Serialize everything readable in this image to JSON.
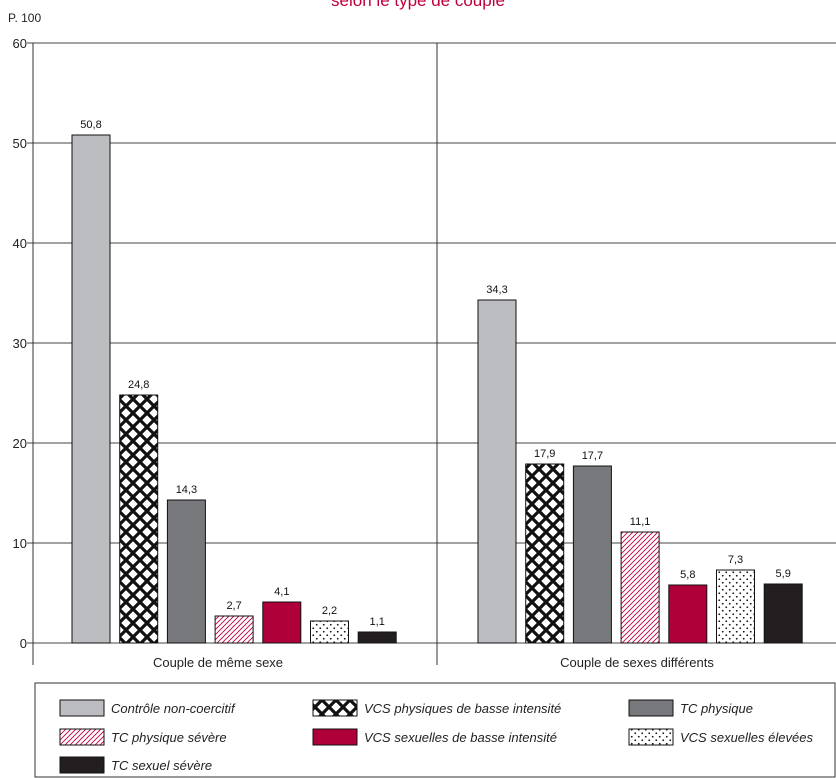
{
  "chart_data": {
    "type": "bar",
    "title": "selon le type de couple",
    "ylabel": "P. 100",
    "ylim": [
      0,
      60
    ],
    "yticks": [
      0,
      10,
      20,
      30,
      40,
      50,
      60
    ],
    "grid": true,
    "legend_position": "bottom",
    "categories": [
      "Couple de même sexe",
      "Couple de sexes différents"
    ],
    "series": [
      {
        "name": "Contrôle non-coercitif",
        "values": [
          50.8,
          34.3
        ],
        "labels": [
          "50,8",
          "34,3"
        ],
        "pattern": "solid",
        "color": "#bcbdc0"
      },
      {
        "name": "VCS physiques de basse intensité",
        "values": [
          24.8,
          17.9
        ],
        "labels": [
          "24,8",
          "17,9"
        ],
        "pattern": "crosshatch",
        "color": "#111111"
      },
      {
        "name": "TC physique",
        "values": [
          14.3,
          17.7
        ],
        "labels": [
          "14,3",
          "17,7"
        ],
        "pattern": "solid",
        "color": "#77787b"
      },
      {
        "name": "TC physique sévère",
        "values": [
          2.7,
          11.1
        ],
        "labels": [
          "2,7",
          "11,1"
        ],
        "pattern": "diagonal",
        "color": "#c0003c"
      },
      {
        "name": "VCS sexuelles de basse intensité",
        "values": [
          4.1,
          5.8
        ],
        "labels": [
          "4,1",
          "5,8"
        ],
        "pattern": "solid",
        "color": "#b0003a"
      },
      {
        "name": "VCS sexuelles élevées",
        "values": [
          2.2,
          7.3
        ],
        "labels": [
          "2,2",
          "7,3"
        ],
        "pattern": "dots",
        "color": "#111111"
      },
      {
        "name": "TC sexuel sévère",
        "values": [
          1.1,
          5.9
        ],
        "labels": [
          "1,1",
          "5,9"
        ],
        "pattern": "solid",
        "color": "#231f20"
      }
    ]
  }
}
